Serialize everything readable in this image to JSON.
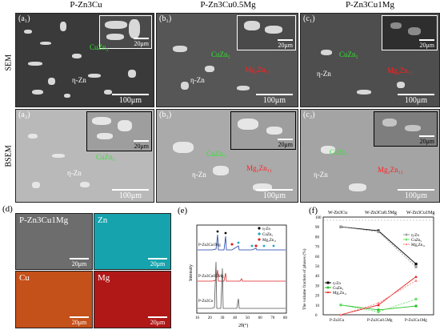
{
  "columns": [
    "P-Zn3Cu",
    "P-Zn3Cu0.5Mg",
    "P-Zn3Cu1Mg"
  ],
  "rows": [
    "SEM",
    "BSEM"
  ],
  "panels": {
    "a1": {
      "label": "(a₁)",
      "inset_scale": "20μm",
      "scale": "100μm",
      "phase1": "CuZn₅",
      "phase2": "η-Zn"
    },
    "b1": {
      "label": "(b₁)",
      "inset_scale": "20μm",
      "scale": "100μm",
      "phase1": "CuZn₅",
      "phase2": "η-Zn",
      "phase3": "Mg₂Zn₁₁"
    },
    "c1": {
      "label": "(c₁)",
      "inset_scale": "20μm",
      "scale": "100μm",
      "phase1": "CuZn₅",
      "phase2": "η-Zn",
      "phase3": "Mg₂Zn₁₁"
    },
    "a2": {
      "label": "(a₂)",
      "inset_scale": "20μm",
      "scale": "100μm",
      "phase1": "CuZn₅",
      "phase2": "η-Zn"
    },
    "b2": {
      "label": "(b₂)",
      "inset_scale": "20μm",
      "scale": "100μm",
      "phase1": "CuZn₅",
      "phase2": "η-Zn",
      "phase3": "Mg₂Zn₁₁"
    },
    "c2": {
      "label": "(c₂)",
      "inset_scale": "20μm",
      "scale": "100μm",
      "phase1": "CuZn₅",
      "phase2": "η-Zn",
      "phase3": "Mg₂Zn₁₁"
    }
  },
  "panel_d": {
    "label": "(d)",
    "maps": [
      {
        "label": "P-Zn3Cu1Mg",
        "scale": "20μm",
        "color": "#6d6d6d"
      },
      {
        "label": "Zn",
        "scale": "20μm",
        "color": "#16a3ad"
      },
      {
        "label": "Cu",
        "scale": "20μm",
        "color": "#c4501a"
      },
      {
        "label": "Mg",
        "scale": "20μm",
        "color": "#b01818"
      }
    ]
  },
  "panel_e": {
    "label": "(e)",
    "ylabel": "Intensity",
    "xlabel": "2θ(°)",
    "legend": [
      "η-Zn",
      "CuZn₅",
      "Mg₂Zn₁₁"
    ],
    "legend_colors": [
      "#000000",
      "#1aa3c8",
      "#e02020"
    ],
    "curve_labels": [
      "P-Zn3Cu1Mg",
      "P-Zn3Cu0.5Mg",
      "P-Zn3Cu"
    ],
    "curve_colors": [
      "#1a3ea8",
      "#e02020",
      "#555555"
    ],
    "xticks": [
      "10",
      "20",
      "30",
      "40",
      "50",
      "60",
      "70",
      "80"
    ]
  },
  "panel_f": {
    "label": "(f)",
    "top_labels": [
      "W-Zn3Cu",
      "W-Zn3Cu0.5Mg",
      "W-Zn3Cu1Mg"
    ],
    "ylabel": "The volume fraction of phases (%)",
    "yticks": [
      "0",
      "10",
      "20",
      "30",
      "40",
      "50",
      "60",
      "70",
      "80",
      "90",
      "100"
    ],
    "xticks": [
      "P-Zn3Cu",
      "P-Zn3Cu0.5Mg",
      "P-Zn3Cu1Mg"
    ],
    "legend_right": [
      "η-Zn",
      "CuZn₅",
      "Mg₂Zn₁₁"
    ],
    "legend_left": [
      "η-Zn",
      "CuZn₅",
      "Mg₂Zn₁₁"
    ]
  },
  "chart_data": {
    "type": "line",
    "x": [
      "P-Zn3Cu",
      "P-Zn3Cu0.5Mg",
      "P-Zn3Cu1Mg"
    ],
    "ylim": [
      0,
      100
    ],
    "series": [
      {
        "name": "η-Zn",
        "style": "solid",
        "color": "#000000",
        "values": [
          90,
          86,
          52
        ]
      },
      {
        "name": "CuZn₅",
        "style": "solid",
        "color": "#22c022",
        "values": [
          10,
          5,
          9
        ]
      },
      {
        "name": "Mg₂Zn₁₁",
        "style": "solid",
        "color": "#e02020",
        "values": [
          0,
          10,
          39
        ]
      },
      {
        "name": "η-Zn",
        "style": "dashed",
        "color": "#999999",
        "values": [
          90,
          85,
          49
        ]
      },
      {
        "name": "CuZn₅",
        "style": "dashed",
        "color": "#66e066",
        "values": [
          10,
          3,
          16
        ]
      },
      {
        "name": "Mg₂Zn₁₁",
        "style": "dashed",
        "color": "#ff8080",
        "values": [
          0,
          12,
          35
        ]
      }
    ]
  }
}
